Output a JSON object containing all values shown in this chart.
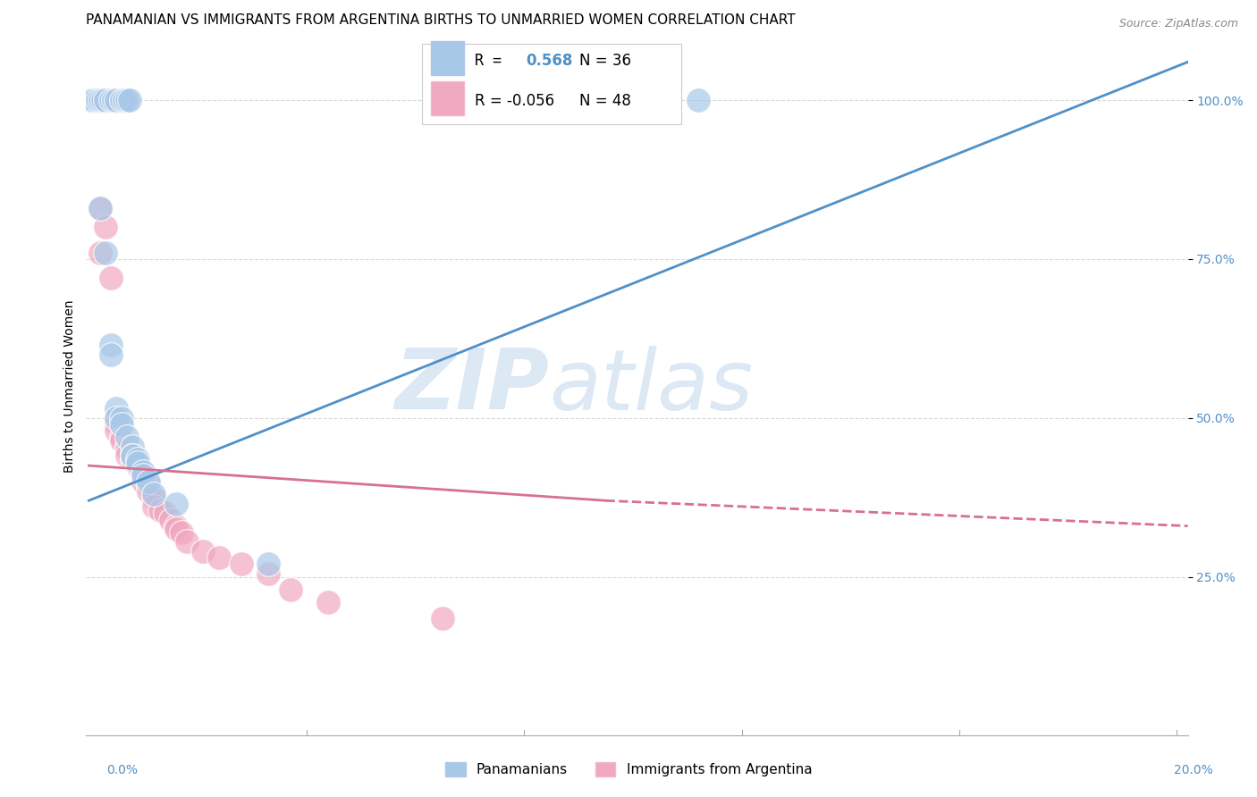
{
  "title": "PANAMANIAN VS IMMIGRANTS FROM ARGENTINA BIRTHS TO UNMARRIED WOMEN CORRELATION CHART",
  "source": "Source: ZipAtlas.com",
  "ylabel": "Births to Unmarried Women",
  "ytick_labels": [
    "100.0%",
    "75.0%",
    "50.0%",
    "25.0%"
  ],
  "ytick_values": [
    1.0,
    0.75,
    0.5,
    0.25
  ],
  "xmin": -0.0005,
  "xmax": 0.202,
  "ymin": 0.0,
  "ymax": 1.1,
  "blue_scatter": [
    [
      0.0005,
      1.0
    ],
    [
      0.001,
      1.0
    ],
    [
      0.0015,
      1.0
    ],
    [
      0.002,
      1.0
    ],
    [
      0.0025,
      1.0
    ],
    [
      0.003,
      1.0
    ],
    [
      0.004,
      1.0
    ],
    [
      0.0045,
      1.0
    ],
    [
      0.005,
      1.0
    ],
    [
      0.006,
      1.0
    ],
    [
      0.0065,
      1.0
    ],
    [
      0.007,
      1.0
    ],
    [
      0.0075,
      1.0
    ],
    [
      0.002,
      0.83
    ],
    [
      0.003,
      0.76
    ],
    [
      0.004,
      0.615
    ],
    [
      0.004,
      0.6
    ],
    [
      0.005,
      0.515
    ],
    [
      0.005,
      0.5
    ],
    [
      0.006,
      0.5
    ],
    [
      0.006,
      0.49
    ],
    [
      0.007,
      0.47
    ],
    [
      0.008,
      0.455
    ],
    [
      0.008,
      0.44
    ],
    [
      0.008,
      0.44
    ],
    [
      0.009,
      0.435
    ],
    [
      0.009,
      0.43
    ],
    [
      0.01,
      0.415
    ],
    [
      0.01,
      0.41
    ],
    [
      0.011,
      0.4
    ],
    [
      0.012,
      0.38
    ],
    [
      0.016,
      0.365
    ],
    [
      0.033,
      0.27
    ],
    [
      0.112,
      1.0
    ]
  ],
  "pink_scatter": [
    [
      0.0005,
      1.0
    ],
    [
      0.001,
      1.0
    ],
    [
      0.0015,
      1.0
    ],
    [
      0.002,
      1.0
    ],
    [
      0.003,
      1.0
    ],
    [
      0.004,
      1.0
    ],
    [
      0.0045,
      1.0
    ],
    [
      0.005,
      1.0
    ],
    [
      0.006,
      1.0
    ],
    [
      0.002,
      0.83
    ],
    [
      0.003,
      0.8
    ],
    [
      0.002,
      0.76
    ],
    [
      0.004,
      0.72
    ],
    [
      0.005,
      0.5
    ],
    [
      0.005,
      0.49
    ],
    [
      0.005,
      0.48
    ],
    [
      0.006,
      0.47
    ],
    [
      0.006,
      0.465
    ],
    [
      0.007,
      0.455
    ],
    [
      0.007,
      0.45
    ],
    [
      0.007,
      0.44
    ],
    [
      0.008,
      0.44
    ],
    [
      0.008,
      0.435
    ],
    [
      0.009,
      0.43
    ],
    [
      0.009,
      0.425
    ],
    [
      0.01,
      0.415
    ],
    [
      0.01,
      0.41
    ],
    [
      0.01,
      0.4
    ],
    [
      0.011,
      0.395
    ],
    [
      0.011,
      0.385
    ],
    [
      0.012,
      0.375
    ],
    [
      0.012,
      0.36
    ],
    [
      0.013,
      0.355
    ],
    [
      0.014,
      0.35
    ],
    [
      0.015,
      0.34
    ],
    [
      0.016,
      0.33
    ],
    [
      0.016,
      0.325
    ],
    [
      0.017,
      0.32
    ],
    [
      0.018,
      0.305
    ],
    [
      0.021,
      0.29
    ],
    [
      0.024,
      0.28
    ],
    [
      0.028,
      0.27
    ],
    [
      0.033,
      0.255
    ],
    [
      0.037,
      0.23
    ],
    [
      0.044,
      0.21
    ],
    [
      0.065,
      0.185
    ]
  ],
  "blue_line": {
    "x": [
      0.0,
      0.202
    ],
    "y": [
      0.37,
      1.06
    ]
  },
  "pink_line_solid": {
    "x": [
      0.0,
      0.095
    ],
    "y": [
      0.425,
      0.37
    ]
  },
  "pink_line_dashed": {
    "x": [
      0.095,
      0.202
    ],
    "y": [
      0.37,
      0.33
    ]
  },
  "grid_color": "#d8d8d8",
  "grid_style": "--",
  "blue_color": "#a8c8e8",
  "pink_color": "#f0a8c0",
  "blue_line_color": "#5090c8",
  "pink_line_color": "#d87090",
  "watermark_zip": "ZIP",
  "watermark_atlas": "atlas",
  "watermark_color": "#dce8f4",
  "title_fontsize": 11,
  "label_fontsize": 10,
  "tick_fontsize": 10,
  "legend_r1_prefix": "R =  ",
  "legend_r1_value": "0.568",
  "legend_r1_suffix": "   N = 36",
  "legend_r2_text": "R = -0.056   N = 48"
}
